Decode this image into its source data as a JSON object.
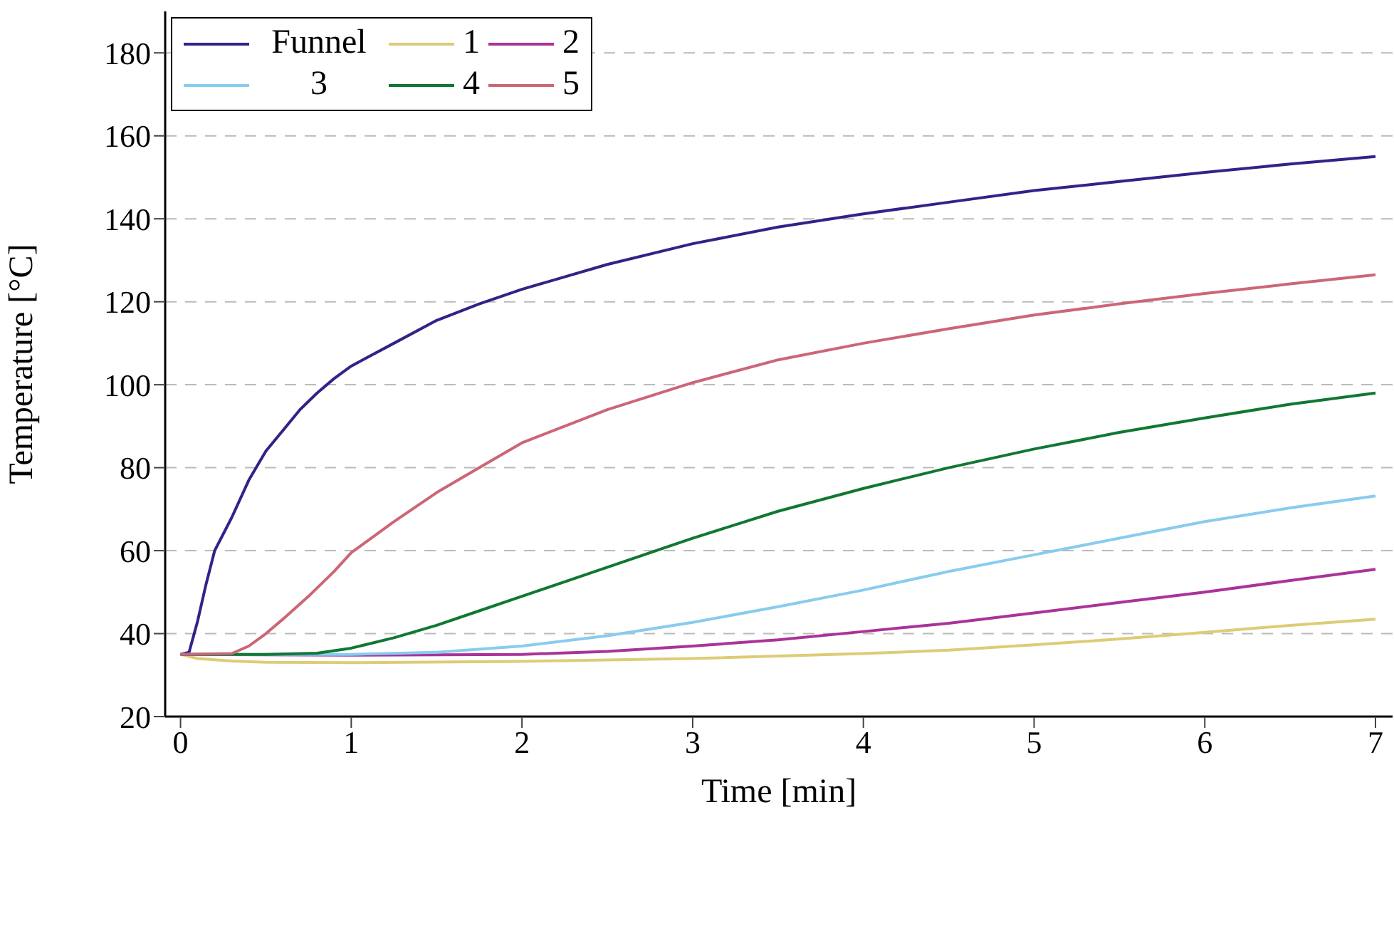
{
  "chart_data": {
    "type": "line",
    "xlabel": "Time [min]",
    "ylabel": "Temperature [°C]",
    "xlim": [
      -0.09,
      7.1
    ],
    "ylim": [
      20,
      190
    ],
    "xticks": [
      0,
      1,
      2,
      3,
      4,
      5,
      6,
      7
    ],
    "yticks": [
      20,
      40,
      60,
      80,
      100,
      120,
      140,
      160,
      180
    ],
    "grid": "y",
    "legend": "top left",
    "marker": "none",
    "line_style": "solid",
    "series": [
      {
        "name": "Funnel",
        "color": "#332288",
        "x": [
          0,
          0.05,
          0.1,
          0.15,
          0.2,
          0.3,
          0.4,
          0.5,
          0.6,
          0.7,
          0.8,
          0.9,
          1,
          1.25,
          1.5,
          1.75,
          2,
          2.5,
          3,
          3.5,
          4,
          4.5,
          5,
          5.5,
          6,
          6.5,
          7
        ],
        "values": [
          35,
          35.5,
          43,
          52,
          60,
          68,
          77,
          84,
          89,
          94,
          98,
          101.5,
          104.5,
          110,
          115.5,
          119.5,
          123,
          129,
          134,
          138,
          141.2,
          144,
          146.8,
          149,
          151.2,
          153.2,
          155
        ]
      },
      {
        "name": "1",
        "color": "#ddcc77",
        "x": [
          0,
          0.1,
          0.3,
          0.5,
          1,
          2,
          3,
          4,
          4.5,
          5,
          5.5,
          6,
          6.5,
          7
        ],
        "values": [
          35,
          34,
          33.4,
          33.1,
          33,
          33.3,
          34,
          35.2,
          36,
          37.3,
          38.7,
          40.3,
          42,
          43.5
        ]
      },
      {
        "name": "2",
        "color": "#aa3399",
        "x": [
          0,
          1,
          2,
          2.5,
          3,
          3.5,
          4,
          4.5,
          5,
          5.5,
          6,
          6.5,
          7
        ],
        "values": [
          35,
          34.8,
          35,
          35.7,
          37,
          38.5,
          40.5,
          42.5,
          45,
          47.5,
          50,
          52.8,
          55.5
        ]
      },
      {
        "name": "3",
        "color": "#88ccee",
        "x": [
          0,
          1,
          1.5,
          2,
          2.5,
          3,
          3.5,
          4,
          4.5,
          5,
          5.5,
          6,
          6.5,
          7
        ],
        "values": [
          35,
          35,
          35.5,
          37,
          39.5,
          42.7,
          46.5,
          50.5,
          55,
          59,
          63,
          67,
          70.3,
          73.2
        ]
      },
      {
        "name": "4",
        "color": "#117733",
        "x": [
          0,
          0.5,
          0.8,
          1,
          1.25,
          1.5,
          1.75,
          2,
          2.5,
          3,
          3.5,
          4,
          4.5,
          5,
          5.5,
          6,
          6.5,
          7
        ],
        "values": [
          35,
          35,
          35.3,
          36.5,
          39,
          42,
          45.5,
          49,
          56,
          63,
          69.5,
          75,
          80,
          84.5,
          88.5,
          92,
          95.3,
          98
        ]
      },
      {
        "name": "5",
        "color": "#cc6677",
        "x": [
          0,
          0.3,
          0.4,
          0.5,
          0.6,
          0.75,
          0.9,
          1,
          1.25,
          1.5,
          1.75,
          2,
          2.5,
          3,
          3.5,
          4,
          4.5,
          5,
          5.5,
          6,
          6.5,
          7
        ],
        "values": [
          35,
          35.2,
          37,
          40,
          43.5,
          49,
          55,
          59.5,
          67,
          74,
          80,
          86,
          94,
          100.5,
          106,
          110,
          113.5,
          116.8,
          119.5,
          122,
          124.3,
          126.5
        ]
      }
    ]
  }
}
